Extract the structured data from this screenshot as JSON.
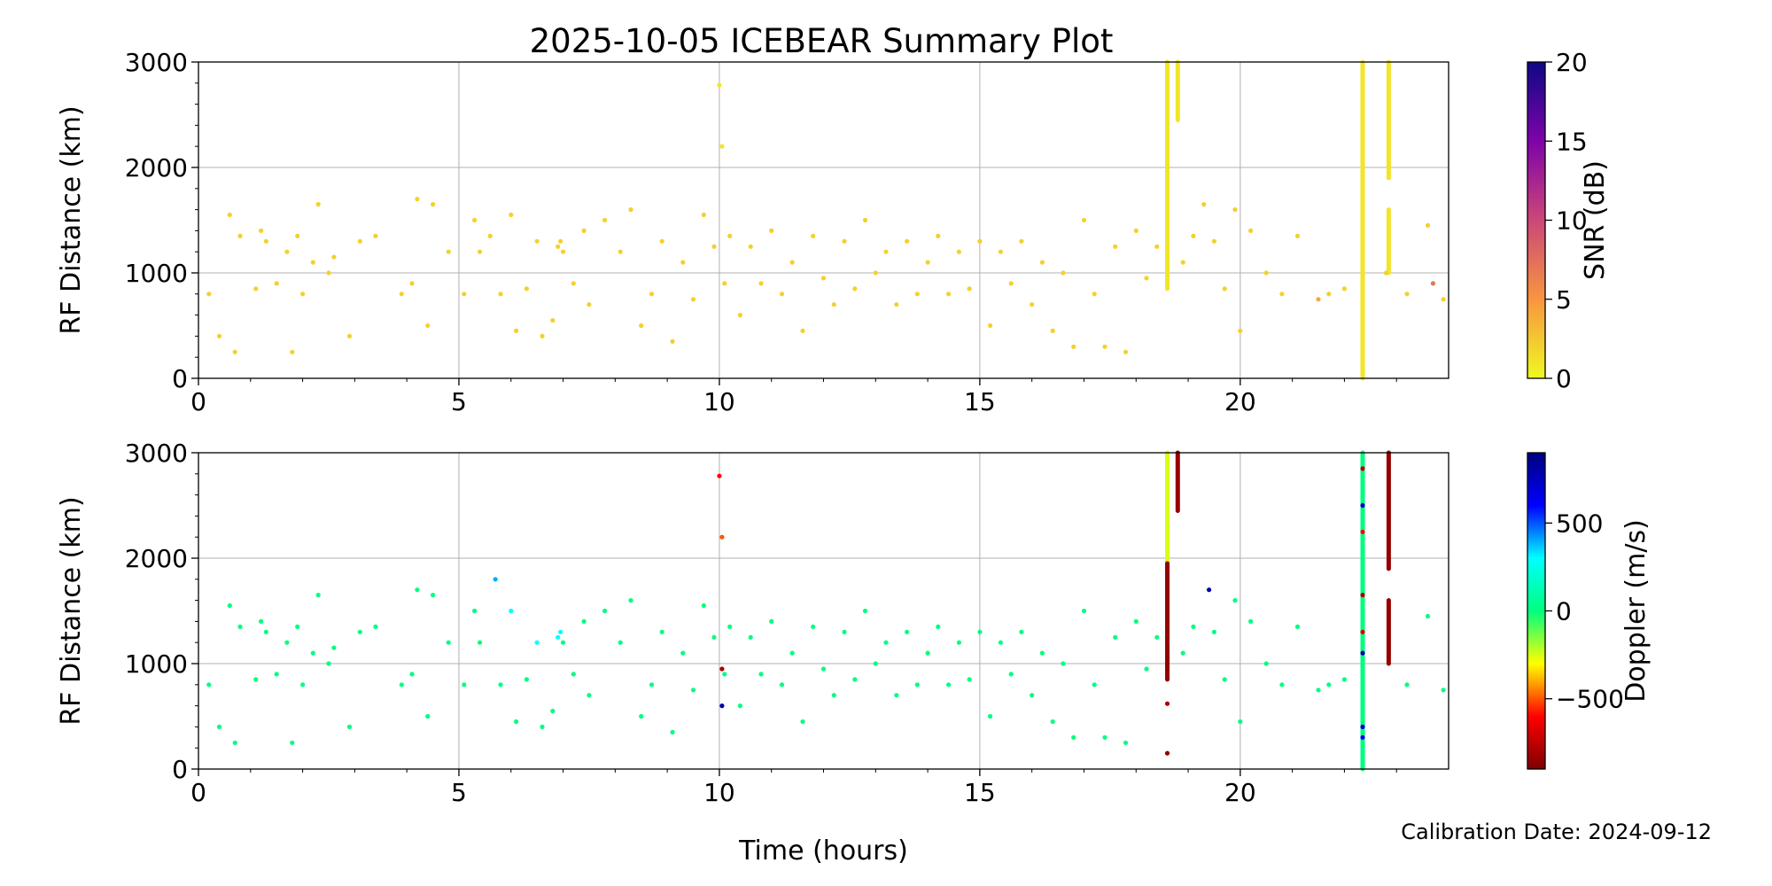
{
  "title": "2025-10-05 ICEBEAR Summary Plot",
  "footer": {
    "calibration": "Calibration Date: 2024-09-12"
  },
  "chart_data": [
    {
      "type": "scatter",
      "panel": "top",
      "xlabel": "",
      "ylabel": "RF Distance (km)",
      "xlim": [
        0,
        24
      ],
      "ylim": [
        0,
        3000
      ],
      "x_ticks": [
        0,
        5,
        10,
        15,
        20
      ],
      "y_ticks": [
        0,
        1000,
        2000,
        3000
      ],
      "grid": true,
      "colorbar": {
        "label": "SNR (dB)",
        "range": [
          0,
          20
        ],
        "ticks": [
          0,
          5,
          10,
          15,
          20
        ],
        "colormap": "plasma_r",
        "colors": [
          "#f0f921",
          "#f89540",
          "#cc4778",
          "#7e03a8",
          "#0d0887"
        ]
      },
      "points": [
        [
          0.2,
          800,
          2
        ],
        [
          0.4,
          400,
          2
        ],
        [
          0.6,
          1550,
          2
        ],
        [
          0.7,
          250,
          2
        ],
        [
          0.8,
          1350,
          2
        ],
        [
          1.1,
          850,
          2
        ],
        [
          1.2,
          1400,
          2
        ],
        [
          1.3,
          1300,
          2
        ],
        [
          1.5,
          900,
          2
        ],
        [
          1.7,
          1200,
          2
        ],
        [
          1.8,
          250,
          2
        ],
        [
          1.9,
          1350,
          2
        ],
        [
          2.0,
          800,
          2
        ],
        [
          2.2,
          1100,
          2
        ],
        [
          2.3,
          1650,
          2
        ],
        [
          2.5,
          1000,
          2
        ],
        [
          2.6,
          1150,
          2
        ],
        [
          2.9,
          400,
          2
        ],
        [
          3.1,
          1300,
          2
        ],
        [
          3.4,
          1350,
          2
        ],
        [
          3.9,
          800,
          2
        ],
        [
          4.1,
          900,
          2
        ],
        [
          4.2,
          1700,
          2
        ],
        [
          4.4,
          500,
          2
        ],
        [
          4.5,
          1650,
          2
        ],
        [
          4.8,
          1200,
          2
        ],
        [
          5.1,
          800,
          2
        ],
        [
          5.3,
          1500,
          2
        ],
        [
          5.4,
          1200,
          2
        ],
        [
          5.6,
          1350,
          2
        ],
        [
          5.8,
          800,
          2
        ],
        [
          6.0,
          1550,
          2
        ],
        [
          6.1,
          450,
          2
        ],
        [
          6.3,
          850,
          2
        ],
        [
          6.5,
          1300,
          2
        ],
        [
          6.6,
          400,
          2
        ],
        [
          6.8,
          550,
          2
        ],
        [
          6.9,
          1250,
          2
        ],
        [
          6.95,
          1300,
          2
        ],
        [
          7.0,
          1200,
          2
        ],
        [
          7.2,
          900,
          2
        ],
        [
          7.4,
          1400,
          2
        ],
        [
          7.5,
          700,
          2
        ],
        [
          7.8,
          1500,
          2
        ],
        [
          8.1,
          1200,
          2
        ],
        [
          8.3,
          1600,
          2
        ],
        [
          8.5,
          500,
          2
        ],
        [
          8.7,
          800,
          2
        ],
        [
          8.9,
          1300,
          2
        ],
        [
          9.1,
          350,
          2
        ],
        [
          9.3,
          1100,
          2
        ],
        [
          9.5,
          750,
          2
        ],
        [
          9.7,
          1550,
          2
        ],
        [
          9.9,
          1250,
          2
        ],
        [
          10.0,
          2780,
          1
        ],
        [
          10.05,
          2200,
          1
        ],
        [
          10.1,
          900,
          2
        ],
        [
          10.2,
          1350,
          2
        ],
        [
          10.4,
          600,
          2
        ],
        [
          10.6,
          1250,
          2
        ],
        [
          10.8,
          900,
          2
        ],
        [
          11.0,
          1400,
          2
        ],
        [
          11.2,
          800,
          2
        ],
        [
          11.4,
          1100,
          2
        ],
        [
          11.6,
          450,
          2
        ],
        [
          11.8,
          1350,
          2
        ],
        [
          12.0,
          950,
          2
        ],
        [
          12.2,
          700,
          2
        ],
        [
          12.4,
          1300,
          2
        ],
        [
          12.6,
          850,
          2
        ],
        [
          12.8,
          1500,
          2
        ],
        [
          13.0,
          1000,
          2
        ],
        [
          13.2,
          1200,
          2
        ],
        [
          13.4,
          700,
          2
        ],
        [
          13.6,
          1300,
          2
        ],
        [
          13.8,
          800,
          2
        ],
        [
          14.0,
          1100,
          2
        ],
        [
          14.2,
          1350,
          2
        ],
        [
          14.4,
          800,
          2
        ],
        [
          14.6,
          1200,
          2
        ],
        [
          14.8,
          850,
          2
        ],
        [
          15.0,
          1300,
          2
        ],
        [
          15.2,
          500,
          2
        ],
        [
          15.4,
          1200,
          2
        ],
        [
          15.6,
          900,
          2
        ],
        [
          15.8,
          1300,
          2
        ],
        [
          16.0,
          700,
          2
        ],
        [
          16.2,
          1100,
          2
        ],
        [
          16.4,
          450,
          2
        ],
        [
          16.6,
          1000,
          2
        ],
        [
          16.8,
          300,
          2
        ],
        [
          17.0,
          1500,
          2
        ],
        [
          17.2,
          800,
          2
        ],
        [
          17.4,
          300,
          2
        ],
        [
          17.6,
          1250,
          2
        ],
        [
          17.8,
          250,
          2
        ],
        [
          18.0,
          1400,
          2
        ],
        [
          18.2,
          950,
          2
        ],
        [
          18.4,
          1250,
          2
        ],
        [
          18.9,
          1100,
          2
        ],
        [
          19.1,
          1350,
          2
        ],
        [
          19.3,
          1650,
          2
        ],
        [
          19.5,
          1300,
          2
        ],
        [
          19.7,
          850,
          2
        ],
        [
          19.9,
          1600,
          2
        ],
        [
          20.0,
          450,
          2
        ],
        [
          20.2,
          1400,
          2
        ],
        [
          20.5,
          1000,
          2
        ],
        [
          20.8,
          800,
          2
        ],
        [
          21.1,
          1350,
          2
        ],
        [
          21.5,
          750,
          4
        ],
        [
          21.7,
          800,
          2
        ],
        [
          22.0,
          850,
          2
        ],
        [
          22.8,
          1000,
          2
        ],
        [
          23.2,
          800,
          2
        ],
        [
          23.6,
          1450,
          2
        ],
        [
          23.7,
          900,
          7
        ],
        [
          23.9,
          750,
          2
        ]
      ],
      "streaks": [
        {
          "x": 18.6,
          "y_from": 850,
          "y_to": 3000,
          "value": 1
        },
        {
          "x": 18.8,
          "y_from": 2450,
          "y_to": 3000,
          "value": 1
        },
        {
          "x": 22.35,
          "y_from": 0,
          "y_to": 3000,
          "value": 1
        },
        {
          "x": 22.85,
          "y_from": 1900,
          "y_to": 3000,
          "value": 1
        },
        {
          "x": 22.85,
          "y_from": 1000,
          "y_to": 1600,
          "value": 1
        }
      ]
    },
    {
      "type": "scatter",
      "panel": "bottom",
      "xlabel": "Time (hours)",
      "ylabel": "RF Distance (km)",
      "xlim": [
        0,
        24
      ],
      "ylim": [
        0,
        3000
      ],
      "x_ticks": [
        0,
        5,
        10,
        15,
        20
      ],
      "y_ticks": [
        0,
        1000,
        2000,
        3000
      ],
      "grid": true,
      "colorbar": {
        "label": "Doppler (m/s)",
        "range": [
          -900,
          900
        ],
        "ticks": [
          -500,
          0,
          500
        ],
        "colormap": "jet_r",
        "colors": [
          "#7f0000",
          "#ff0000",
          "#ffff00",
          "#00ff7f",
          "#00ffff",
          "#0000ff",
          "#00007f"
        ]
      },
      "points": [
        [
          0.2,
          800,
          0
        ],
        [
          0.4,
          400,
          0
        ],
        [
          0.6,
          1550,
          0
        ],
        [
          0.7,
          250,
          0
        ],
        [
          0.8,
          1350,
          0
        ],
        [
          1.1,
          850,
          0
        ],
        [
          1.2,
          1400,
          0
        ],
        [
          1.3,
          1300,
          0
        ],
        [
          1.5,
          900,
          0
        ],
        [
          1.7,
          1200,
          0
        ],
        [
          1.8,
          250,
          0
        ],
        [
          1.9,
          1350,
          0
        ],
        [
          2.0,
          800,
          0
        ],
        [
          2.2,
          1100,
          0
        ],
        [
          2.3,
          1650,
          0
        ],
        [
          2.5,
          1000,
          0
        ],
        [
          2.6,
          1150,
          0
        ],
        [
          2.9,
          400,
          0
        ],
        [
          3.1,
          1300,
          0
        ],
        [
          3.4,
          1350,
          0
        ],
        [
          3.9,
          800,
          0
        ],
        [
          4.1,
          900,
          0
        ],
        [
          4.2,
          1700,
          0
        ],
        [
          4.4,
          500,
          0
        ],
        [
          4.5,
          1650,
          0
        ],
        [
          4.8,
          1200,
          0
        ],
        [
          5.1,
          800,
          0
        ],
        [
          5.3,
          1500,
          0
        ],
        [
          5.4,
          1200,
          0
        ],
        [
          5.7,
          1800,
          400
        ],
        [
          5.8,
          800,
          0
        ],
        [
          6.0,
          1500,
          300
        ],
        [
          6.1,
          450,
          0
        ],
        [
          6.3,
          850,
          0
        ],
        [
          6.5,
          1200,
          300
        ],
        [
          6.6,
          400,
          0
        ],
        [
          6.8,
          550,
          0
        ],
        [
          6.9,
          1250,
          300
        ],
        [
          6.95,
          1300,
          300
        ],
        [
          7.0,
          1200,
          0
        ],
        [
          7.2,
          900,
          0
        ],
        [
          7.4,
          1400,
          0
        ],
        [
          7.5,
          700,
          0
        ],
        [
          7.8,
          1500,
          0
        ],
        [
          8.1,
          1200,
          0
        ],
        [
          8.3,
          1600,
          0
        ],
        [
          8.5,
          500,
          0
        ],
        [
          8.7,
          800,
          0
        ],
        [
          8.9,
          1300,
          0
        ],
        [
          9.1,
          350,
          0
        ],
        [
          9.3,
          1100,
          0
        ],
        [
          9.5,
          750,
          0
        ],
        [
          9.7,
          1550,
          0
        ],
        [
          9.9,
          1250,
          0
        ],
        [
          10.0,
          2780,
          -600
        ],
        [
          10.05,
          2200,
          -500
        ],
        [
          10.05,
          950,
          -800
        ],
        [
          10.05,
          600,
          800
        ],
        [
          10.1,
          900,
          0
        ],
        [
          10.2,
          1350,
          0
        ],
        [
          10.4,
          600,
          0
        ],
        [
          10.6,
          1250,
          0
        ],
        [
          10.8,
          900,
          0
        ],
        [
          11.0,
          1400,
          0
        ],
        [
          11.2,
          800,
          0
        ],
        [
          11.4,
          1100,
          0
        ],
        [
          11.6,
          450,
          0
        ],
        [
          11.8,
          1350,
          0
        ],
        [
          12.0,
          950,
          0
        ],
        [
          12.2,
          700,
          0
        ],
        [
          12.4,
          1300,
          0
        ],
        [
          12.6,
          850,
          0
        ],
        [
          12.8,
          1500,
          0
        ],
        [
          13.0,
          1000,
          0
        ],
        [
          13.2,
          1200,
          0
        ],
        [
          13.4,
          700,
          0
        ],
        [
          13.6,
          1300,
          0
        ],
        [
          13.8,
          800,
          0
        ],
        [
          14.0,
          1100,
          0
        ],
        [
          14.2,
          1350,
          0
        ],
        [
          14.4,
          800,
          0
        ],
        [
          14.6,
          1200,
          0
        ],
        [
          14.8,
          850,
          0
        ],
        [
          15.0,
          1300,
          0
        ],
        [
          15.2,
          500,
          0
        ],
        [
          15.4,
          1200,
          0
        ],
        [
          15.6,
          900,
          0
        ],
        [
          15.8,
          1300,
          0
        ],
        [
          16.0,
          700,
          0
        ],
        [
          16.2,
          1100,
          0
        ],
        [
          16.4,
          450,
          0
        ],
        [
          16.6,
          1000,
          0
        ],
        [
          16.8,
          300,
          0
        ],
        [
          17.0,
          1500,
          0
        ],
        [
          17.2,
          800,
          0
        ],
        [
          17.4,
          300,
          0
        ],
        [
          17.6,
          1250,
          0
        ],
        [
          17.8,
          250,
          0
        ],
        [
          18.0,
          1400,
          0
        ],
        [
          18.2,
          950,
          0
        ],
        [
          18.4,
          1250,
          0
        ],
        [
          18.6,
          150,
          -850
        ],
        [
          18.6,
          620,
          -800
        ],
        [
          18.9,
          1100,
          0
        ],
        [
          19.1,
          1350,
          0
        ],
        [
          19.4,
          1700,
          800
        ],
        [
          19.5,
          1300,
          0
        ],
        [
          19.7,
          850,
          0
        ],
        [
          19.9,
          1600,
          0
        ],
        [
          20.0,
          450,
          0
        ],
        [
          20.2,
          1400,
          0
        ],
        [
          20.5,
          1000,
          0
        ],
        [
          20.8,
          800,
          0
        ],
        [
          21.1,
          1350,
          0
        ],
        [
          21.5,
          750,
          0
        ],
        [
          21.7,
          800,
          0
        ],
        [
          22.0,
          850,
          0
        ],
        [
          22.35,
          2850,
          -800
        ],
        [
          22.35,
          2500,
          700
        ],
        [
          22.35,
          2250,
          -600
        ],
        [
          22.35,
          1650,
          -800
        ],
        [
          22.35,
          1300,
          -700
        ],
        [
          22.35,
          1100,
          800
        ],
        [
          22.35,
          400,
          700
        ],
        [
          22.35,
          300,
          600
        ],
        [
          23.2,
          800,
          0
        ],
        [
          23.6,
          1450,
          0
        ],
        [
          23.9,
          750,
          0
        ]
      ],
      "streaks": [
        {
          "x": 18.6,
          "y_from": 1950,
          "y_to": 3000,
          "value": -250
        },
        {
          "x": 18.6,
          "y_from": 850,
          "y_to": 1950,
          "value": -850
        },
        {
          "x": 18.8,
          "y_from": 2450,
          "y_to": 3000,
          "value": -850
        },
        {
          "x": 22.35,
          "y_from": 0,
          "y_to": 3000,
          "value": 0
        },
        {
          "x": 22.85,
          "y_from": 1900,
          "y_to": 3000,
          "value": -850
        },
        {
          "x": 22.85,
          "y_from": 1000,
          "y_to": 1600,
          "value": -850
        }
      ]
    }
  ]
}
